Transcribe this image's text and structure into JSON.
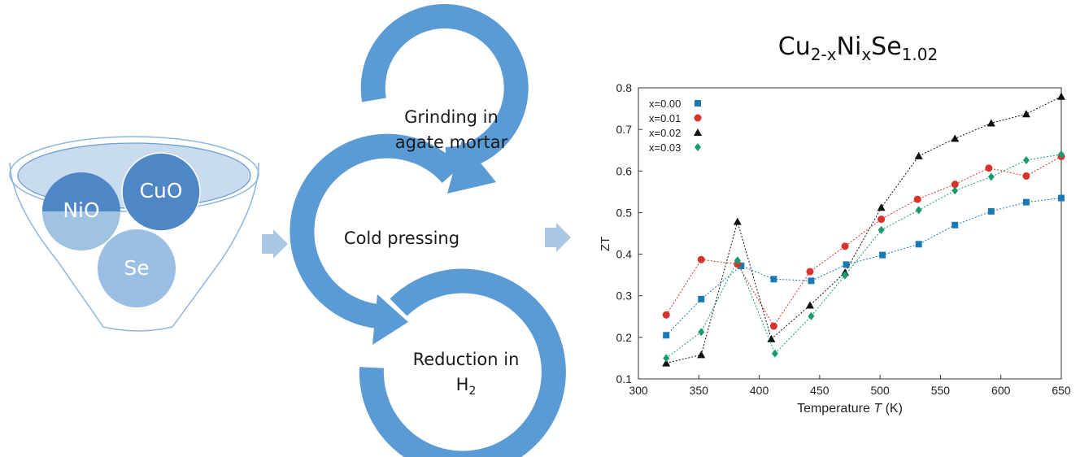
{
  "funnel": {
    "items": [
      "NiO",
      "CuO",
      "Se"
    ]
  },
  "cycle": {
    "steps": {
      "grinding": [
        "Grinding in",
        "agate mortar"
      ],
      "pressing": "Cold pressing",
      "reduction": [
        "Reduction in",
        "H",
        "2"
      ]
    }
  },
  "colors": {
    "arrow_blue": "#5b9bd5",
    "funnel_fill": "#ffffff",
    "funnel_stroke": "#8fb6dd",
    "funnel_rim": "#c9dcef",
    "circle_dark": "#4f87c6",
    "circle_light": "#9bbfe2",
    "chevron": "#aac7e6"
  },
  "chart_data": {
    "type": "line",
    "title": {
      "base": "Cu",
      "sub1": "2-x",
      "mid1": "Ni",
      "sub2": "x",
      "mid2": "Se",
      "sub3": "1.02"
    },
    "xlabel": {
      "prefix": "Temperature ",
      "var": "T",
      "suffix": " (K)"
    },
    "ylabel": "ZT",
    "xlim": [
      300,
      650
    ],
    "ylim": [
      0.1,
      0.8
    ],
    "xticks": [
      300,
      350,
      400,
      450,
      500,
      550,
      600,
      650
    ],
    "yticks": [
      0.1,
      0.2,
      0.3,
      0.4,
      0.5,
      0.6,
      0.7,
      0.8
    ],
    "ytick_labels": [
      "0.1",
      "0.2",
      "0.3",
      "0.4",
      "0.5",
      "0.6",
      "0.7",
      "0.8"
    ],
    "grid": false,
    "legend_position": "top-left",
    "series": [
      {
        "name": "x=0.00",
        "marker": "square",
        "color": "#1a7ab5",
        "x": [
          323,
          352,
          385,
          412,
          443,
          472,
          502,
          532,
          562,
          592,
          621,
          650
        ],
        "y": [
          0.205,
          0.292,
          0.372,
          0.34,
          0.336,
          0.375,
          0.398,
          0.424,
          0.47,
          0.503,
          0.525,
          0.535
        ]
      },
      {
        "name": "x=0.01",
        "marker": "circle",
        "color": "#d9312b",
        "x": [
          323,
          352,
          382,
          412,
          442,
          471,
          501,
          531,
          562,
          590,
          621,
          650
        ],
        "y": [
          0.254,
          0.387,
          0.376,
          0.227,
          0.358,
          0.419,
          0.484,
          0.532,
          0.568,
          0.607,
          0.588,
          0.635
        ]
      },
      {
        "name": "x=0.02",
        "marker": "triangle",
        "color": "#111111",
        "x": [
          323,
          352,
          382,
          410,
          442,
          471,
          501,
          532,
          562,
          592,
          621,
          650
        ],
        "y": [
          0.138,
          0.158,
          0.478,
          0.196,
          0.277,
          0.356,
          0.512,
          0.636,
          0.678,
          0.715,
          0.737,
          0.779
        ]
      },
      {
        "name": "x=0.03",
        "marker": "diamond",
        "color": "#1a9a73",
        "x": [
          323,
          352,
          382,
          413,
          443,
          471,
          501,
          532,
          562,
          592,
          621,
          650
        ],
        "y": [
          0.15,
          0.213,
          0.385,
          0.161,
          0.251,
          0.349,
          0.458,
          0.506,
          0.553,
          0.586,
          0.626,
          0.64
        ]
      }
    ]
  }
}
